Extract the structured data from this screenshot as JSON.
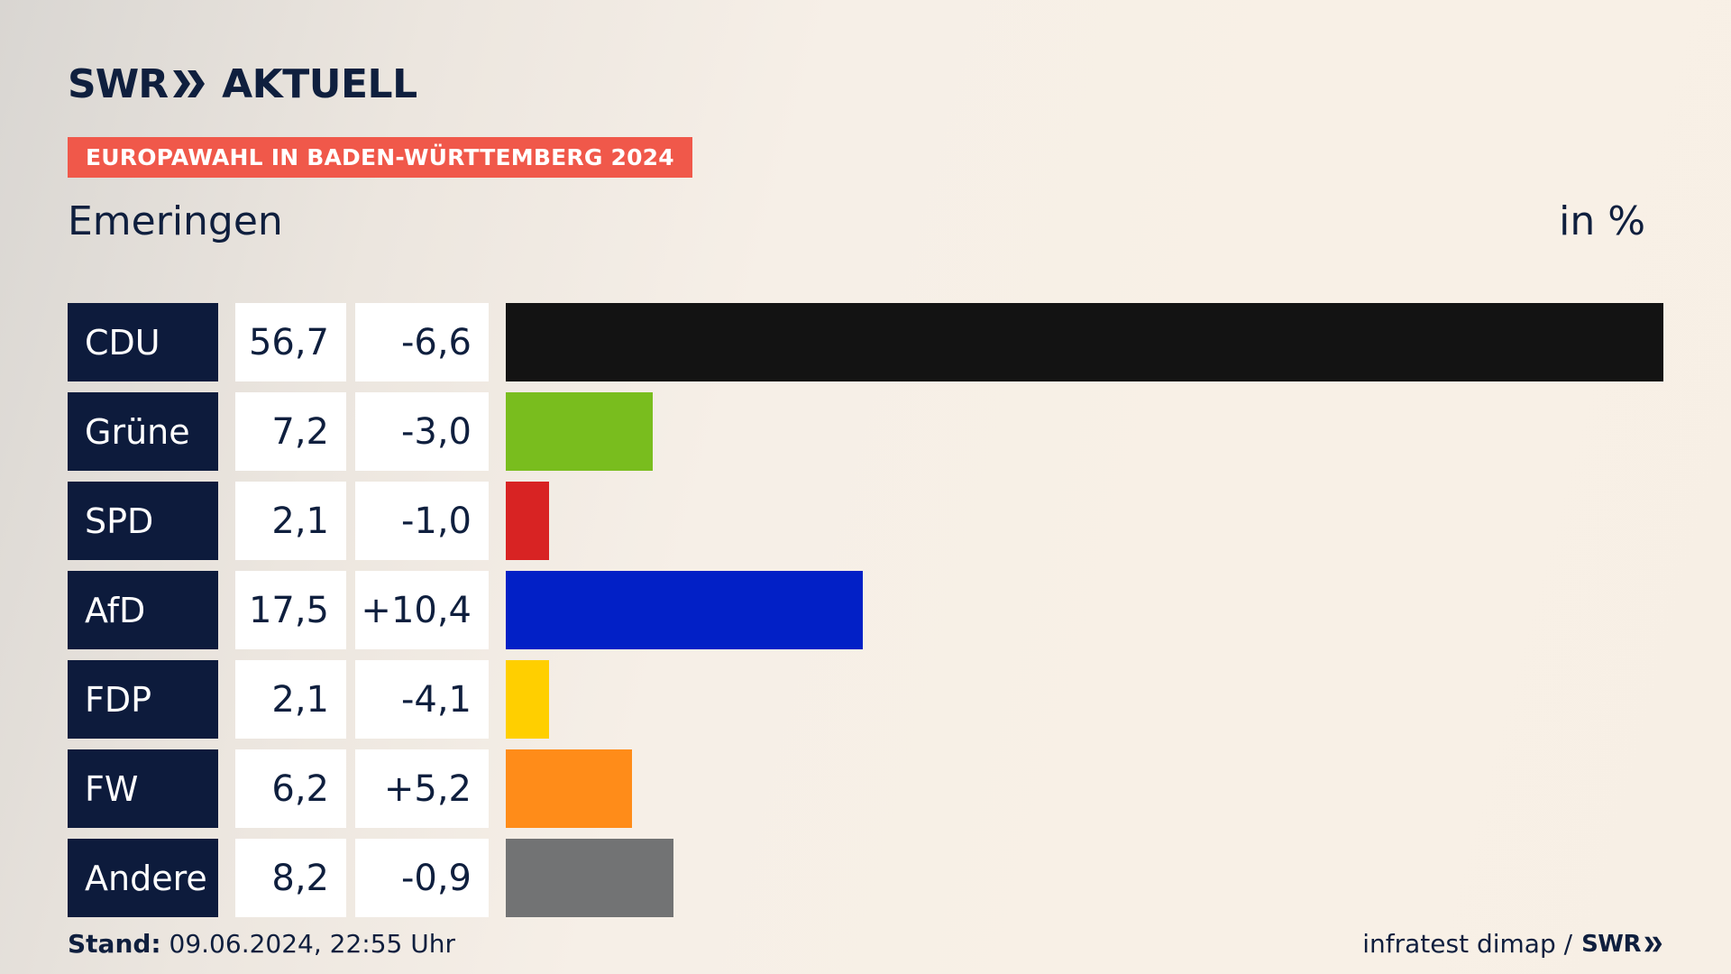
{
  "brand": {
    "logo_swr": "SWR",
    "logo_aktuell": "AKTUELL"
  },
  "banner": "EUROPAWAHL IN BADEN-WÜRTTEMBERG 2024",
  "place": "Emeringen",
  "unit": "in %",
  "chart_data": {
    "type": "bar",
    "orientation": "horizontal",
    "categories": [
      "CDU",
      "Grüne",
      "SPD",
      "AfD",
      "FDP",
      "FW",
      "Andere"
    ],
    "values": [
      56.7,
      7.2,
      2.1,
      17.5,
      2.1,
      6.2,
      8.2
    ],
    "value_labels": [
      "56,7",
      "7,2",
      "2,1",
      "17,5",
      "2,1",
      "6,2",
      "8,2"
    ],
    "diff_labels": [
      "-6,6",
      "-3,0",
      "-1,0",
      "+10,4",
      "-4,1",
      "+5,2",
      "-0,9"
    ],
    "colors": [
      "#131313",
      "#79bd1e",
      "#d82323",
      "#0220c6",
      "#ffcf00",
      "#ff8c19",
      "#727374"
    ],
    "xlim": [
      0,
      56.7
    ],
    "grid": false
  },
  "footer": {
    "stand_label": "Stand:",
    "stand_value": "09.06.2024, 22:55 Uhr",
    "source": "infratest dimap /",
    "source_logo": "SWR"
  }
}
